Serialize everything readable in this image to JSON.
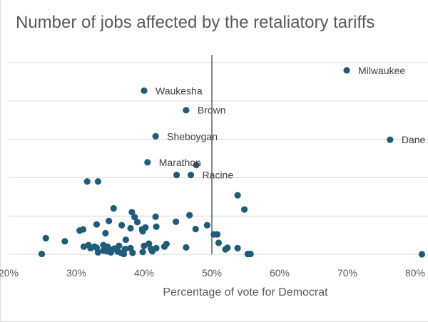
{
  "chart_data": {
    "type": "scatter",
    "title": "Number of jobs affected by the retaliatory tariffs",
    "xlabel": "Percentage of vote for Democrat",
    "ylabel": "",
    "xlim": [
      0.2,
      0.81
    ],
    "ylim": [
      0,
      5
    ],
    "x_ticks": [
      {
        "value": 0.2,
        "label": "20%"
      },
      {
        "value": 0.3,
        "label": "30%"
      },
      {
        "value": 0.4,
        "label": "40%"
      },
      {
        "value": 0.5,
        "label": "50%"
      },
      {
        "value": 0.6,
        "label": "60%"
      },
      {
        "value": 0.7,
        "label": "70%"
      },
      {
        "value": 0.8,
        "label": "80%"
      }
    ],
    "y_gridlines": [
      0,
      1,
      2,
      3,
      4,
      5
    ],
    "reference_line_x": 0.5,
    "marker_color": "#1f5c7a",
    "gridline_color": "#d9d9d9",
    "labeled_points": [
      {
        "label": "Milwaukee",
        "x": 0.699,
        "y": 4.8
      },
      {
        "label": "Waukesha",
        "x": 0.4,
        "y": 4.27
      },
      {
        "label": "Brown",
        "x": 0.462,
        "y": 3.76
      },
      {
        "label": "Sheboygan",
        "x": 0.417,
        "y": 3.08
      },
      {
        "label": "Dane",
        "x": 0.763,
        "y": 2.99
      },
      {
        "label": "Marathon",
        "x": 0.405,
        "y": 2.4
      },
      {
        "label": "Racine",
        "x": 0.469,
        "y": 2.07
      }
    ],
    "points": [
      {
        "x": 0.477,
        "y": 2.33
      },
      {
        "x": 0.448,
        "y": 2.07
      },
      {
        "x": 0.316,
        "y": 1.9
      },
      {
        "x": 0.332,
        "y": 1.9
      },
      {
        "x": 0.538,
        "y": 1.54
      },
      {
        "x": 0.548,
        "y": 1.17
      },
      {
        "x": 0.355,
        "y": 1.2
      },
      {
        "x": 0.382,
        "y": 1.1
      },
      {
        "x": 0.386,
        "y": 0.97
      },
      {
        "x": 0.417,
        "y": 0.98
      },
      {
        "x": 0.467,
        "y": 1.02
      },
      {
        "x": 0.348,
        "y": 0.87
      },
      {
        "x": 0.39,
        "y": 0.84
      },
      {
        "x": 0.447,
        "y": 0.85
      },
      {
        "x": 0.493,
        "y": 0.76
      },
      {
        "x": 0.367,
        "y": 0.76
      },
      {
        "x": 0.33,
        "y": 0.78
      },
      {
        "x": 0.38,
        "y": 0.68
      },
      {
        "x": 0.402,
        "y": 0.7
      },
      {
        "x": 0.418,
        "y": 0.72
      },
      {
        "x": 0.397,
        "y": 0.65
      },
      {
        "x": 0.305,
        "y": 0.62
      },
      {
        "x": 0.31,
        "y": 0.65
      },
      {
        "x": 0.476,
        "y": 0.66
      },
      {
        "x": 0.343,
        "y": 0.55
      },
      {
        "x": 0.398,
        "y": 0.6
      },
      {
        "x": 0.503,
        "y": 0.52
      },
      {
        "x": 0.508,
        "y": 0.52
      },
      {
        "x": 0.255,
        "y": 0.42
      },
      {
        "x": 0.283,
        "y": 0.34
      },
      {
        "x": 0.373,
        "y": 0.38
      },
      {
        "x": 0.51,
        "y": 0.3
      },
      {
        "x": 0.433,
        "y": 0.27
      },
      {
        "x": 0.407,
        "y": 0.28
      },
      {
        "x": 0.318,
        "y": 0.24
      },
      {
        "x": 0.34,
        "y": 0.24
      },
      {
        "x": 0.311,
        "y": 0.2
      },
      {
        "x": 0.327,
        "y": 0.2
      },
      {
        "x": 0.346,
        "y": 0.2
      },
      {
        "x": 0.363,
        "y": 0.22
      },
      {
        "x": 0.4,
        "y": 0.22
      },
      {
        "x": 0.43,
        "y": 0.2
      },
      {
        "x": 0.462,
        "y": 0.18
      },
      {
        "x": 0.523,
        "y": 0.17
      },
      {
        "x": 0.538,
        "y": 0.16
      },
      {
        "x": 0.321,
        "y": 0.16
      },
      {
        "x": 0.33,
        "y": 0.17
      },
      {
        "x": 0.352,
        "y": 0.12
      },
      {
        "x": 0.356,
        "y": 0.15
      },
      {
        "x": 0.372,
        "y": 0.14
      },
      {
        "x": 0.38,
        "y": 0.16
      },
      {
        "x": 0.41,
        "y": 0.15
      },
      {
        "x": 0.418,
        "y": 0.16
      },
      {
        "x": 0.52,
        "y": 0.13
      },
      {
        "x": 0.345,
        "y": 0.08
      },
      {
        "x": 0.34,
        "y": 0.1
      },
      {
        "x": 0.361,
        "y": 0.07
      },
      {
        "x": 0.366,
        "y": 0.04
      },
      {
        "x": 0.398,
        "y": 0.06
      },
      {
        "x": 0.412,
        "y": 0.08
      },
      {
        "x": 0.332,
        "y": 0.05
      },
      {
        "x": 0.351,
        "y": 0.05
      },
      {
        "x": 0.249,
        "y": 0.01
      },
      {
        "x": 0.37,
        "y": 0.01
      },
      {
        "x": 0.383,
        "y": 0.04
      },
      {
        "x": 0.553,
        "y": 0.01
      },
      {
        "x": 0.557,
        "y": 0.01
      },
      {
        "x": 0.81,
        "y": 0.0
      }
    ]
  }
}
